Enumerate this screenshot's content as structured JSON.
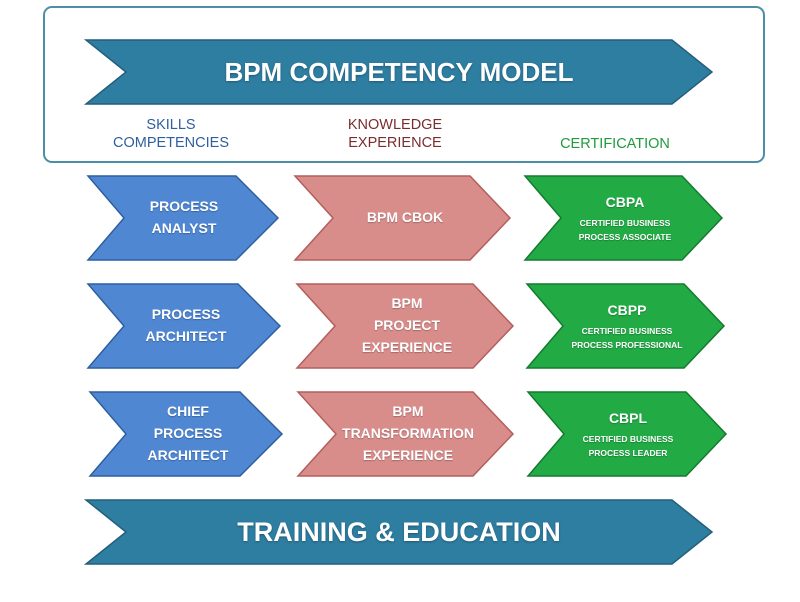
{
  "header": {
    "title": "BPM COMPETENCY MODEL"
  },
  "columns": {
    "skills": "SKILLS\nCOMPETENCIES",
    "knowledge": "KNOWLEDGE\nEXPERIENCE",
    "certification": "CERTIFICATION"
  },
  "rows": [
    {
      "skill": "PROCESS\nANALYST",
      "knowledge": "BPM CBOK",
      "cert": {
        "code": "CBPA",
        "desc": "CERTIFIED BUSINESS\nPROCESS ASSOCIATE"
      }
    },
    {
      "skill": "PROCESS\nARCHITECT",
      "knowledge": "BPM\nPROJECT\nEXPERIENCE",
      "cert": {
        "code": "CBPP",
        "desc": "CERTIFIED BUSINESS\nPROCESS PROFESSIONAL"
      }
    },
    {
      "skill": "CHIEF\nPROCESS\nARCHITECT",
      "knowledge": "BPM\nTRANSFORMATION\nEXPERIENCE",
      "cert": {
        "code": "CBPL",
        "desc": "CERTIFIED BUSINESS\nPROCESS LEADER"
      }
    }
  ],
  "footer": {
    "title": "TRAINING & EDUCATION"
  },
  "colors": {
    "banner_fill": "#2e7ea2",
    "banner_stroke": "#245f7b",
    "skill_fill": "#4f87d3",
    "skill_stroke": "#2f5f9e",
    "knowledge_fill": "#d88d8b",
    "knowledge_stroke": "#b35e5c",
    "cert_fill": "#22ab45",
    "cert_stroke": "#157a30",
    "frame_stroke": "#4b8ea5"
  }
}
